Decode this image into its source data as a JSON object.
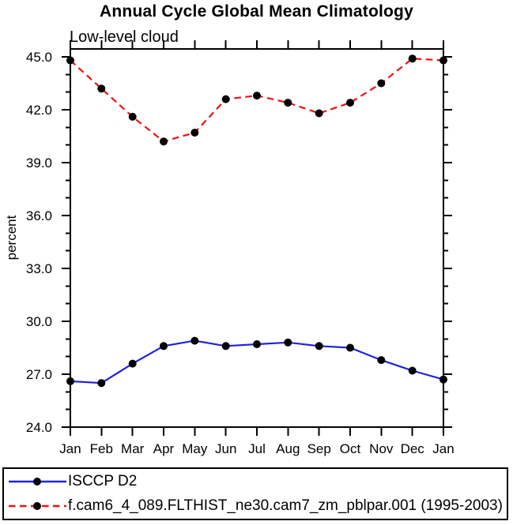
{
  "page": {
    "title": "Annual Cycle Global Mean Climatology",
    "subtitle": "Low-level cloud",
    "y_axis_title": "percent"
  },
  "chart_data": {
    "type": "line",
    "title": "Annual Cycle Global Mean Climatology",
    "subtitle": "Low-level cloud",
    "xlabel": "",
    "ylabel": "percent",
    "categories": [
      "Jan",
      "Feb",
      "Mar",
      "Apr",
      "May",
      "Jun",
      "Jul",
      "Aug",
      "Sep",
      "Oct",
      "Nov",
      "Dec",
      "Jan"
    ],
    "ylim": [
      24.0,
      45.45
    ],
    "yticks": [
      24.0,
      27.0,
      30.0,
      33.0,
      36.0,
      39.0,
      42.0,
      45.0
    ],
    "y_minor_tick_step": 1.0,
    "grid": false,
    "legend_position": "bottom",
    "axis_color": "#000000",
    "marker": "filled-circle",
    "marker_color": "#000000",
    "series": [
      {
        "name": "ISCCP D2",
        "color": "#2222dd",
        "line_style": "solid",
        "values": [
          26.6,
          26.5,
          27.6,
          28.6,
          28.9,
          28.6,
          28.7,
          28.8,
          28.6,
          28.5,
          27.8,
          27.2,
          26.7
        ]
      },
      {
        "name": "f.cam6_4_089.FLTHIST_ne30.cam7_zm_pblpar.001 (1995-2003)",
        "color": "#ee1111",
        "line_style": "dashed",
        "values": [
          44.8,
          43.2,
          41.6,
          40.2,
          40.7,
          42.6,
          42.8,
          42.4,
          41.8,
          42.4,
          43.5,
          44.9,
          44.8
        ]
      }
    ]
  }
}
